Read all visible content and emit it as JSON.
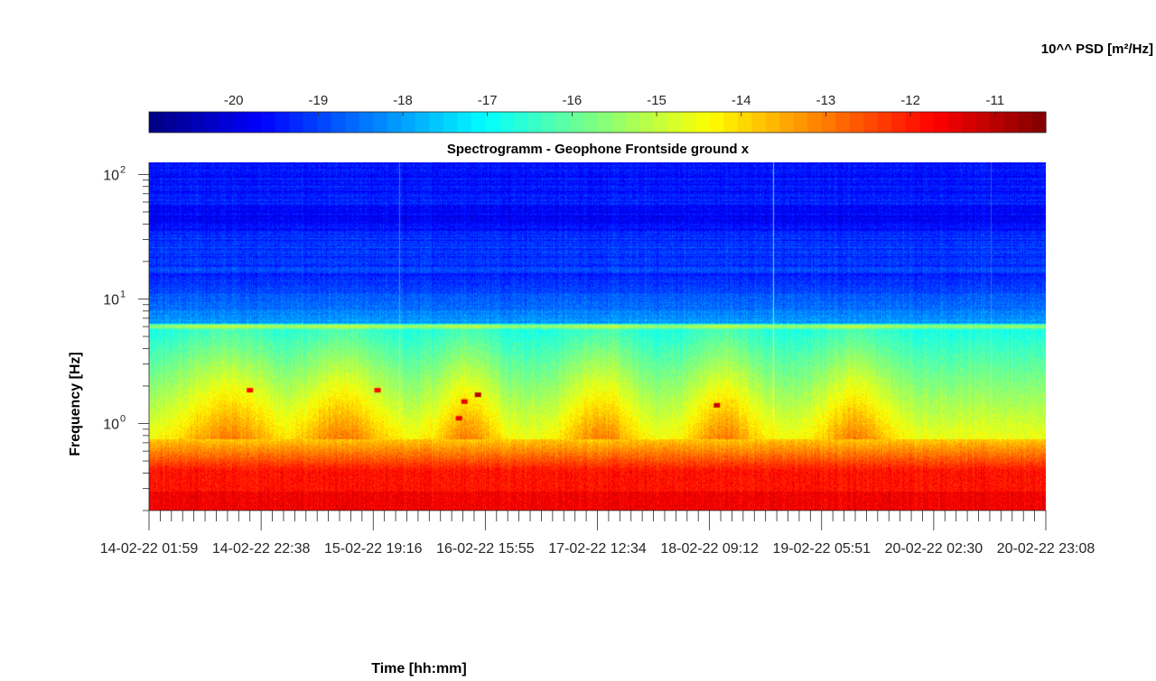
{
  "chart_data": {
    "type": "heatmap",
    "title": "Spectrogramm - Geophone Frontside ground x",
    "xlabel": "Time [hh:mm]",
    "ylabel": "Frequency [Hz]",
    "colorbar": {
      "label": "10^^ PSD [m²/Hz]",
      "ticks": [
        -20,
        -19,
        -18,
        -17,
        -16,
        -15,
        -14,
        -13,
        -12,
        -11
      ],
      "tick_labels": [
        "-20",
        "-19",
        "-18",
        "-17",
        "-16",
        "-15",
        "-14",
        "-13",
        "-12",
        "-11"
      ],
      "range": [
        -21,
        -10.4
      ],
      "colormap": "jet",
      "position": "top"
    },
    "x_tick_labels": [
      "14-02-22  01:59",
      "14-02-22  22:38",
      "15-02-22  19:16",
      "16-02-22  15:55",
      "17-02-22  12:34",
      "18-02-22  09:12",
      "19-02-22  05:51",
      "20-02-22  02:30",
      "20-02-22  23:08"
    ],
    "x_range_hours": [
      0,
      165.15
    ],
    "y_scale": "log",
    "y_range": [
      0.2,
      125
    ],
    "y_ticks": [
      1,
      10,
      100
    ],
    "y_tick_labels": [
      "10",
      "10",
      "10"
    ],
    "y_tick_exponents": [
      "0",
      "1",
      "2"
    ],
    "grid": false,
    "features": {
      "tonal_line_hz": 6,
      "low_freq_energy_below_hz": 0.7,
      "hot_spots": [
        {
          "t_hours": 18.5,
          "f_hz": 1.85,
          "log_psd": -11.8
        },
        {
          "t_hours": 42.0,
          "f_hz": 1.85,
          "log_psd": -11.8
        },
        {
          "t_hours": 57.0,
          "f_hz": 1.1,
          "log_psd": -11.5
        },
        {
          "t_hours": 58.0,
          "f_hz": 1.5,
          "log_psd": -11.5
        },
        {
          "t_hours": 60.5,
          "f_hz": 1.7,
          "log_psd": -11.0
        },
        {
          "t_hours": 104.5,
          "f_hz": 1.4,
          "log_psd": -11.2
        }
      ],
      "active_bands_hours": [
        [
          8,
          22
        ],
        [
          29,
          42
        ],
        [
          54,
          63
        ],
        [
          78,
          88
        ],
        [
          101,
          111
        ],
        [
          125,
          135
        ]
      ]
    }
  }
}
